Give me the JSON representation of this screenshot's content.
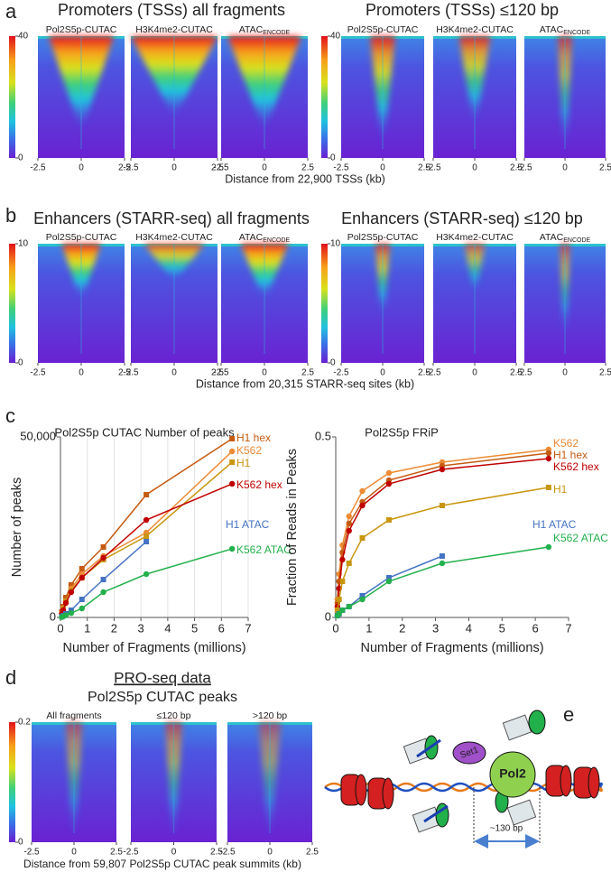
{
  "figure": {
    "panel_labels": [
      "a",
      "b",
      "c",
      "d",
      "e"
    ],
    "heatmap_rows": [
      {
        "groups": [
          {
            "title": "Promoters (TSSs) all fragments",
            "tracks": [
              {
                "name": "Pol2S5p-CUTAC"
              },
              {
                "name": "H3K4me2-CUTAC"
              },
              {
                "name": "ATAC",
                "sub": "ENCODE"
              }
            ],
            "cticks": [
              0,
              40
            ],
            "xlim": [
              -2.5,
              2.5
            ],
            "xticks": [
              -2.5,
              0,
              2.5
            ]
          },
          {
            "title": "Promoters (TSSs) ≤120 bp",
            "tracks": [
              {
                "name": "Pol2S5p-CUTAC"
              },
              {
                "name": "H3K4me2-CUTAC"
              },
              {
                "name": "ATAC",
                "sub": "ENCODE"
              }
            ],
            "cticks": [
              0,
              40
            ],
            "xlim": [
              -2.5,
              2.5
            ],
            "xticks": [
              -2.5,
              0,
              2.5
            ]
          }
        ],
        "xlabel": "Distance from 22,900 TSSs (kb)"
      },
      {
        "groups": [
          {
            "title": "Enhancers (STARR-seq) all fragments",
            "tracks": [
              {
                "name": "Pol2S5p-CUTAC"
              },
              {
                "name": "H3K4me2-CUTAC"
              },
              {
                "name": "ATAC",
                "sub": "ENCODE"
              }
            ],
            "cticks": [
              0,
              10
            ],
            "xlim": [
              -2.5,
              2.5
            ],
            "xticks": [
              -2.5,
              0,
              2.5
            ]
          },
          {
            "title": "Enhancers (STARR-seq) ≤120 bp",
            "tracks": [
              {
                "name": "Pol2S5p-CUTAC"
              },
              {
                "name": "H3K4me2-CUTAC"
              },
              {
                "name": "ATAC",
                "sub": "ENCODE"
              }
            ],
            "cticks": [
              0,
              10
            ],
            "xlim": [
              -2.5,
              2.5
            ],
            "xticks": [
              -2.5,
              0,
              2.5
            ]
          }
        ],
        "xlabel": "Distance from 20,315 STARR-seq sites (kb)"
      }
    ],
    "pro_seq": {
      "heading": "PRO-seq data",
      "title": "Pol2S5p CUTAC peaks",
      "tracks": [
        {
          "name": "All fragments"
        },
        {
          "name": "≤120 bp"
        },
        {
          "name": ">120 bp"
        }
      ],
      "cticks": [
        0,
        0.2
      ],
      "xlim": [
        -2.5,
        2.5
      ],
      "xticks": [
        -2.5,
        0,
        2.5
      ],
      "xlabel": "Distance from 59,807 Pol2S5p CUTAC peak summits (kb)"
    },
    "diagram": {
      "labels": [
        "Set1",
        "Pol2",
        "~130 bp"
      ]
    }
  },
  "chart_data": [
    {
      "type": "line",
      "title": "Pol2S5p CUTAC Number of peaks",
      "xlabel": "Number of Fragments (millions)",
      "ylabel": "Number of peaks",
      "xlim": [
        0,
        7
      ],
      "xticks": [
        0,
        1,
        2,
        3,
        4,
        5,
        6,
        7
      ],
      "ylim": [
        0,
        50000
      ],
      "yticks": [
        0,
        {
          "value": 50000,
          "label": "50,000"
        }
      ],
      "grid": true,
      "series": [
        {
          "name": "H1 hex",
          "color": "#c55a11",
          "marker": "square",
          "x": [
            0.05,
            0.1,
            0.2,
            0.4,
            0.8,
            1.6,
            3.2,
            6.4
          ],
          "values": [
            1500,
            3000,
            5500,
            9000,
            13500,
            19500,
            34000,
            49500
          ]
        },
        {
          "name": "K562",
          "color": "#ed8b34",
          "marker": "circle",
          "x": [
            0.05,
            0.1,
            0.2,
            0.4,
            0.8,
            1.6,
            3.2,
            6.4
          ],
          "values": [
            1000,
            2500,
            4500,
            8000,
            12000,
            17000,
            23500,
            46000
          ]
        },
        {
          "name": "H1",
          "color": "#c8960f",
          "marker": "square",
          "x": [
            0.05,
            0.1,
            0.2,
            0.4,
            0.8,
            1.6,
            3.2,
            6.4
          ],
          "values": [
            1000,
            2500,
            4500,
            7500,
            11000,
            16000,
            22500,
            43000
          ]
        },
        {
          "name": "K562 hex",
          "color": "#c00000",
          "marker": "circle",
          "x": [
            0.05,
            0.1,
            0.2,
            0.4,
            0.8,
            1.6,
            3.2,
            6.4
          ],
          "values": [
            1000,
            2000,
            4000,
            7000,
            11000,
            16500,
            27000,
            37000
          ]
        },
        {
          "name": "H1 ATAC",
          "color": "#4472c4",
          "marker": "square",
          "x": [
            0.05,
            0.1,
            0.2,
            0.4,
            0.8,
            1.6,
            3.2
          ],
          "values": [
            200,
            500,
            1000,
            2000,
            5000,
            10500,
            21000
          ]
        },
        {
          "name": "K562 ATAC",
          "color": "#22b04b",
          "marker": "circle",
          "x": [
            0.05,
            0.1,
            0.2,
            0.4,
            0.8,
            1.6,
            3.2,
            6.4
          ],
          "values": [
            100,
            300,
            600,
            1200,
            2500,
            7000,
            12000,
            19000
          ]
        }
      ]
    },
    {
      "type": "line",
      "title": "Pol2S5p FRiP",
      "xlabel": "Number of Fragments (millions)",
      "ylabel": "Fraction of Reads in Peaks",
      "xlim": [
        0,
        7
      ],
      "xticks": [
        0,
        1,
        2,
        3,
        4,
        5,
        6,
        7
      ],
      "ylim": [
        0,
        0.5
      ],
      "yticks": [
        0,
        0.5
      ],
      "grid": false,
      "series": [
        {
          "name": "K562",
          "color": "#ed8b34",
          "marker": "circle",
          "x": [
            0.05,
            0.1,
            0.2,
            0.4,
            0.8,
            1.6,
            3.2,
            6.4
          ],
          "values": [
            0.05,
            0.12,
            0.2,
            0.28,
            0.35,
            0.4,
            0.43,
            0.465
          ]
        },
        {
          "name": "H1 hex",
          "color": "#c55a11",
          "marker": "circle",
          "x": [
            0.05,
            0.1,
            0.2,
            0.4,
            0.8,
            1.6,
            3.2,
            6.4
          ],
          "values": [
            0.04,
            0.1,
            0.18,
            0.26,
            0.32,
            0.38,
            0.42,
            0.455
          ]
        },
        {
          "name": "K562 hex",
          "color": "#c00000",
          "marker": "circle",
          "x": [
            0.05,
            0.1,
            0.2,
            0.4,
            0.8,
            1.6,
            3.2,
            6.4
          ],
          "values": [
            0.03,
            0.08,
            0.16,
            0.24,
            0.31,
            0.37,
            0.41,
            0.44
          ]
        },
        {
          "name": "H1",
          "color": "#c8960f",
          "marker": "square",
          "x": [
            0.05,
            0.1,
            0.2,
            0.4,
            0.8,
            1.6,
            3.2,
            6.4
          ],
          "values": [
            0.02,
            0.05,
            0.1,
            0.15,
            0.22,
            0.27,
            0.31,
            0.36
          ]
        },
        {
          "name": "H1 ATAC",
          "color": "#4472c4",
          "marker": "square",
          "x": [
            0.05,
            0.1,
            0.2,
            0.4,
            0.8,
            1.6,
            3.2
          ],
          "values": [
            0.005,
            0.01,
            0.02,
            0.03,
            0.06,
            0.11,
            0.17
          ]
        },
        {
          "name": "K562 ATAC",
          "color": "#22b04b",
          "marker": "circle",
          "x": [
            0.05,
            0.1,
            0.2,
            0.4,
            0.8,
            1.6,
            3.2,
            6.4
          ],
          "values": [
            0.005,
            0.01,
            0.02,
            0.03,
            0.05,
            0.1,
            0.15,
            0.195
          ]
        }
      ]
    }
  ]
}
